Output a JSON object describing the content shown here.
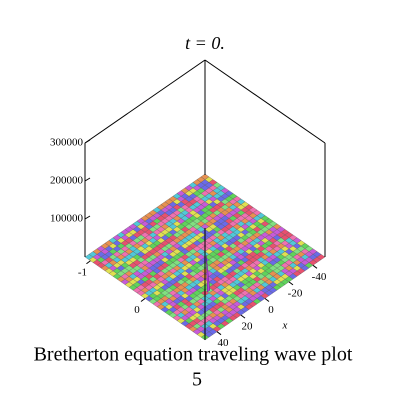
{
  "chart_data": {
    "type": "surface3d",
    "title": "t = 0.",
    "xlabel": "x",
    "xlim": [
      -50,
      50
    ],
    "xticks": [
      -40,
      -20,
      0,
      20,
      40
    ],
    "ylim": [
      -1.1,
      1.1
    ],
    "yticks": [
      -1,
      0
    ],
    "zlim": [
      0,
      300000
    ],
    "zticks": [
      100000,
      200000,
      300000
    ],
    "caption": "Bretherton equation  traveling wave plot",
    "caption_number": "5"
  }
}
